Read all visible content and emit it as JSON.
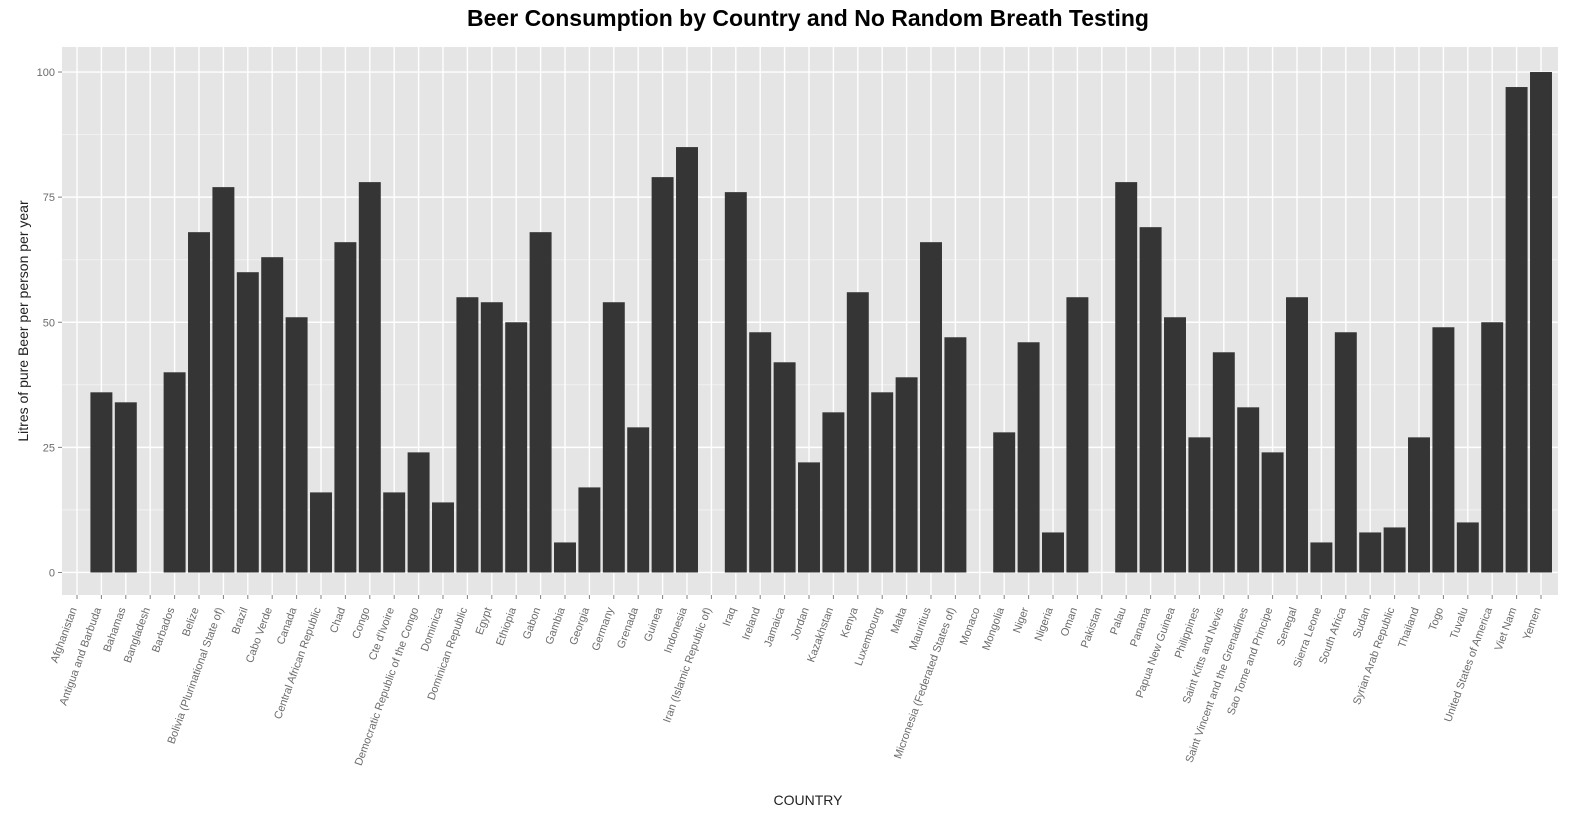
{
  "chart_data": {
    "type": "bar",
    "title": "Beer Consumption by Country and No Random Breath Testing",
    "xlabel": "COUNTRY",
    "ylabel": "Litres of pure Beer per person per year",
    "ylim": [
      -4.5,
      105
    ],
    "yticks": [
      0,
      25,
      50,
      75,
      100
    ],
    "grid": true,
    "colors": {
      "bar": "#353535",
      "panel": "#e5e5e5",
      "grid_major": "#ffffff",
      "grid_minor": "#f2f2f2",
      "tick_text": "#6b6b6b"
    },
    "categories": [
      "Afghanistan",
      "Antigua and Barbuda",
      "Bahamas",
      "Bangladesh",
      "Barbados",
      "Belize",
      "Bolivia (Plurinational State of)",
      "Brazil",
      "Cabo Verde",
      "Canada",
      "Central African Republic",
      "Chad",
      "Congo",
      "Cte d'Ivoire",
      "Democratic Republic of the Congo",
      "Dominica",
      "Dominican Republic",
      "Egypt",
      "Ethiopia",
      "Gabon",
      "Gambia",
      "Georgia",
      "Germany",
      "Grenada",
      "Guinea",
      "Indonesia",
      "Iran (Islamic Republic of)",
      "Iraq",
      "Ireland",
      "Jamaica",
      "Jordan",
      "Kazakhstan",
      "Kenya",
      "Luxembourg",
      "Malta",
      "Mauritius",
      "Micronesia (Federated States of)",
      "Monaco",
      "Mongolia",
      "Niger",
      "Nigeria",
      "Oman",
      "Pakistan",
      "Palau",
      "Panama",
      "Papua New Guinea",
      "Philippines",
      "Saint Kitts and Nevis",
      "Saint Vincent and the Grenadines",
      "Sao Tome and Principe",
      "Senegal",
      "Sierra Leone",
      "South Africa",
      "Sudan",
      "Syrian Arab Republic",
      "Thailand",
      "Togo",
      "Tuvalu",
      "United States of America",
      "Viet Nam",
      "Yemen"
    ],
    "values": [
      null,
      36,
      34,
      null,
      40,
      68,
      77,
      60,
      63,
      51,
      16,
      66,
      78,
      16,
      24,
      14,
      55,
      54,
      50,
      68,
      6,
      17,
      54,
      29,
      79,
      85,
      null,
      76,
      48,
      42,
      22,
      32,
      56,
      36,
      39,
      66,
      47,
      null,
      28,
      46,
      8,
      55,
      null,
      78,
      69,
      51,
      27,
      44,
      33,
      24,
      55,
      6,
      48,
      8,
      9,
      27,
      49,
      10,
      50,
      97,
      100
    ]
  }
}
